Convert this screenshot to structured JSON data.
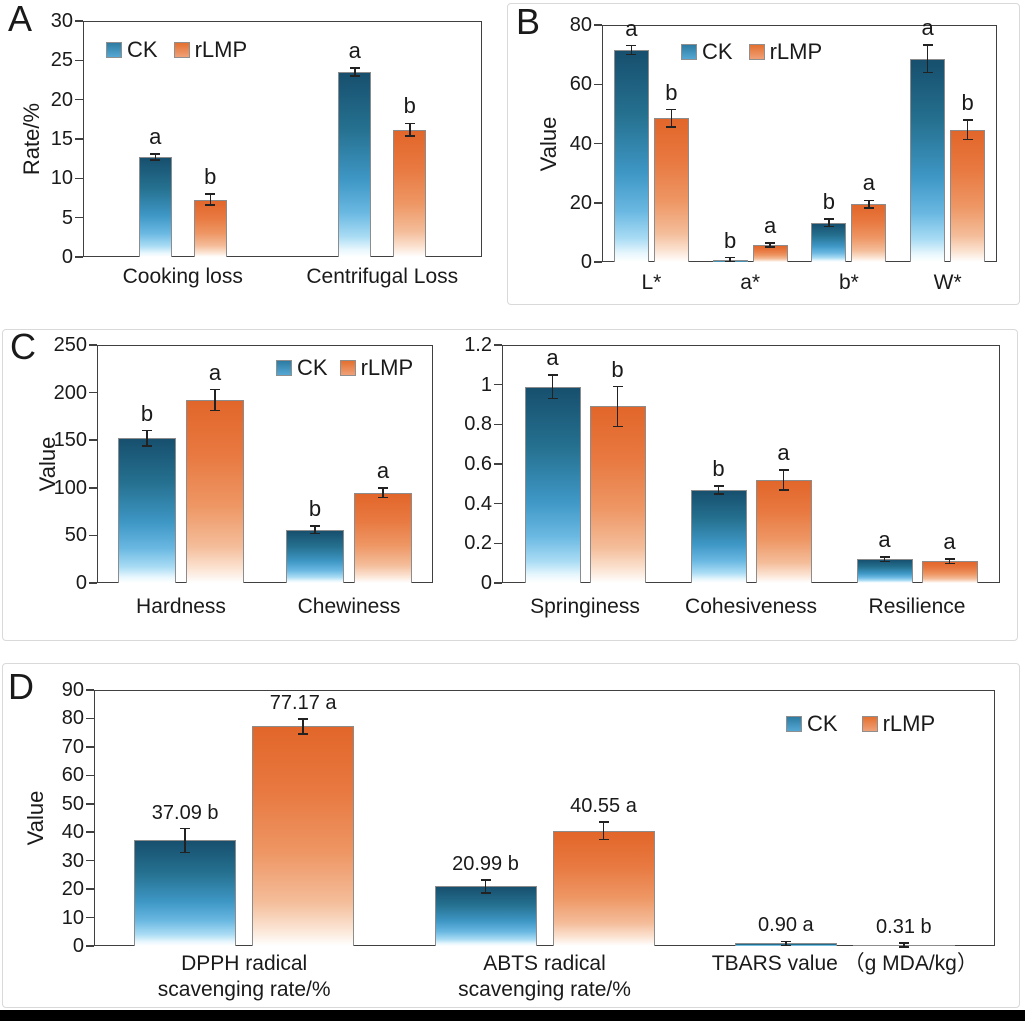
{
  "figure": {
    "background": "#ffffff",
    "footer_bar_color": "#000000",
    "panel_border_color": "#d9d9d9",
    "axis_color": "#404040",
    "text_color": "#1a1a1a",
    "series_colors": {
      "CK": "#2a76a0",
      "rLMP": "#e4702f"
    }
  },
  "chart_data": [
    {
      "id": "A",
      "type": "bar",
      "panel_label": "A",
      "ylabel": "Rate/%",
      "ylim": [
        0,
        30
      ],
      "yticks": [
        "0",
        "5",
        "10",
        "15",
        "20",
        "25",
        "30"
      ],
      "categories": [
        [
          "Cooking loss"
        ],
        [
          "Centrifugal Loss"
        ]
      ],
      "legend_position": "top-left-inside",
      "series": [
        {
          "name": "CK",
          "values": [
            12.7,
            23.5
          ],
          "errors": [
            0.4,
            0.5
          ],
          "letters": [
            "a",
            "a"
          ]
        },
        {
          "name": "rLMP",
          "values": [
            7.3,
            16.2
          ],
          "errors": [
            0.7,
            0.8
          ],
          "letters": [
            "b",
            "b"
          ]
        }
      ]
    },
    {
      "id": "B",
      "type": "bar",
      "panel_label": "B",
      "ylabel": "Value",
      "ylim": [
        0,
        80
      ],
      "yticks": [
        "0",
        "20",
        "40",
        "60",
        "80"
      ],
      "categories": [
        [
          "L*"
        ],
        [
          "a*"
        ],
        [
          "b*"
        ],
        [
          "W*"
        ]
      ],
      "legend_position": "top-center-inside",
      "series": [
        {
          "name": "CK",
          "values": [
            71.5,
            0.8,
            13.2,
            68.6
          ],
          "errors": [
            1.5,
            0.3,
            1.3,
            4.6
          ],
          "letters": [
            "a",
            "b",
            "b",
            "a"
          ]
        },
        {
          "name": "rLMP",
          "values": [
            48.5,
            5.8,
            19.5,
            44.7
          ],
          "errors": [
            2.9,
            0.5,
            1.3,
            3.3
          ],
          "letters": [
            "b",
            "a",
            "a",
            "b"
          ]
        }
      ]
    },
    {
      "id": "C1",
      "type": "bar",
      "panel_label": "C",
      "ylabel": "Value",
      "ylim": [
        0,
        250
      ],
      "yticks": [
        "0",
        "50",
        "100",
        "150",
        "200",
        "250"
      ],
      "categories": [
        [
          "Hardness"
        ],
        [
          "Chewiness"
        ]
      ],
      "legend_position": "top-right-inside",
      "series": [
        {
          "name": "CK",
          "values": [
            152,
            56
          ],
          "errors": [
            8,
            4
          ],
          "letters": [
            "b",
            "b"
          ]
        },
        {
          "name": "rLMP",
          "values": [
            192,
            95
          ],
          "errors": [
            11,
            5
          ],
          "letters": [
            "a",
            "a"
          ]
        }
      ]
    },
    {
      "id": "C2",
      "type": "bar",
      "panel_label": "",
      "ylabel": "",
      "ylim": [
        0,
        1.2
      ],
      "yticks": [
        "0",
        "0.2",
        "0.4",
        "0.6",
        "0.8",
        "1",
        "1.2"
      ],
      "categories": [
        [
          "Springiness"
        ],
        [
          "Cohesiveness"
        ],
        [
          "Resilience"
        ]
      ],
      "series": [
        {
          "name": "CK",
          "values": [
            0.99,
            0.47,
            0.12
          ],
          "errors": [
            0.06,
            0.02,
            0.012
          ],
          "letters": [
            "a",
            "b",
            "a"
          ]
        },
        {
          "name": "rLMP",
          "values": [
            0.89,
            0.52,
            0.11
          ],
          "errors": [
            0.1,
            0.05,
            0.012
          ],
          "letters": [
            "b",
            "a",
            "a"
          ]
        }
      ]
    },
    {
      "id": "D",
      "type": "bar",
      "panel_label": "D",
      "ylabel": "Value",
      "ylim": [
        0,
        90
      ],
      "yticks": [
        "0",
        "10",
        "20",
        "30",
        "40",
        "50",
        "60",
        "70",
        "80",
        "90"
      ],
      "categories": [
        [
          "DPPH radical",
          "scavenging rate/%"
        ],
        [
          "ABTS radical",
          "scavenging rate/%"
        ],
        [
          "TBARS value （g MDA/kg）"
        ]
      ],
      "legend_position": "top-right-inside",
      "series": [
        {
          "name": "CK",
          "values": [
            37.09,
            20.99,
            0.9
          ],
          "errors": [
            4.2,
            2.3,
            0.35
          ],
          "value_labels": [
            "37.09 b",
            "20.99 b",
            "0.90 a"
          ]
        },
        {
          "name": "rLMP",
          "values": [
            77.17,
            40.55,
            0.31
          ],
          "errors": [
            2.6,
            3.1,
            0.15
          ],
          "value_labels": [
            "77.17 a",
            "40.55 a",
            "0.31 b"
          ]
        }
      ]
    }
  ]
}
